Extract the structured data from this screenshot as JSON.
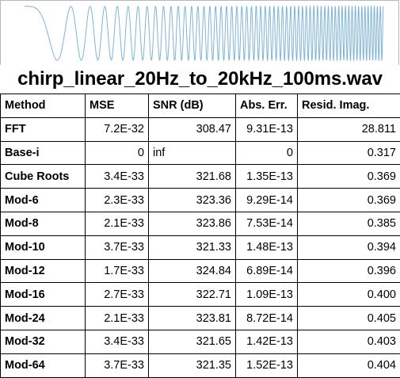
{
  "title": "chirp_linear_20Hz_to_20kHz_100ms.wav",
  "waveform": {
    "icon": "chirp-waveform-plot",
    "stroke_color": "#7fb3d5"
  },
  "table": {
    "headers": {
      "method": "Method",
      "mse": "MSE",
      "snr": "SNR (dB)",
      "abs_err": "Abs. Err.",
      "resid_imag": "Resid. Imag."
    },
    "rows": [
      {
        "method": "FFT",
        "mse": "7.2E-32",
        "snr": "308.47",
        "abs_err": "9.31E-13",
        "resid_imag": "28.811"
      },
      {
        "method": "Base-i",
        "mse": "0",
        "snr": "inf",
        "abs_err": "0",
        "resid_imag": "0.317"
      },
      {
        "method": "Cube Roots",
        "mse": "3.4E-33",
        "snr": "321.68",
        "abs_err": "1.35E-13",
        "resid_imag": "0.369"
      },
      {
        "method": "Mod-6",
        "mse": "2.3E-33",
        "snr": "323.36",
        "abs_err": "9.29E-14",
        "resid_imag": "0.369"
      },
      {
        "method": "Mod-8",
        "mse": "2.1E-33",
        "snr": "323.86",
        "abs_err": "7.53E-14",
        "resid_imag": "0.385"
      },
      {
        "method": "Mod-10",
        "mse": "3.7E-33",
        "snr": "321.33",
        "abs_err": "1.48E-13",
        "resid_imag": "0.394"
      },
      {
        "method": "Mod-12",
        "mse": "1.7E-33",
        "snr": "324.84",
        "abs_err": "6.89E-14",
        "resid_imag": "0.396"
      },
      {
        "method": "Mod-16",
        "mse": "2.7E-33",
        "snr": "322.71",
        "abs_err": "1.09E-13",
        "resid_imag": "0.400"
      },
      {
        "method": "Mod-24",
        "mse": "2.1E-33",
        "snr": "323.81",
        "abs_err": "8.72E-14",
        "resid_imag": "0.405"
      },
      {
        "method": "Mod-32",
        "mse": "3.4E-33",
        "snr": "321.65",
        "abs_err": "1.42E-13",
        "resid_imag": "0.403"
      },
      {
        "method": "Mod-64",
        "mse": "3.7E-33",
        "snr": "321.35",
        "abs_err": "1.52E-13",
        "resid_imag": "0.404"
      }
    ]
  }
}
